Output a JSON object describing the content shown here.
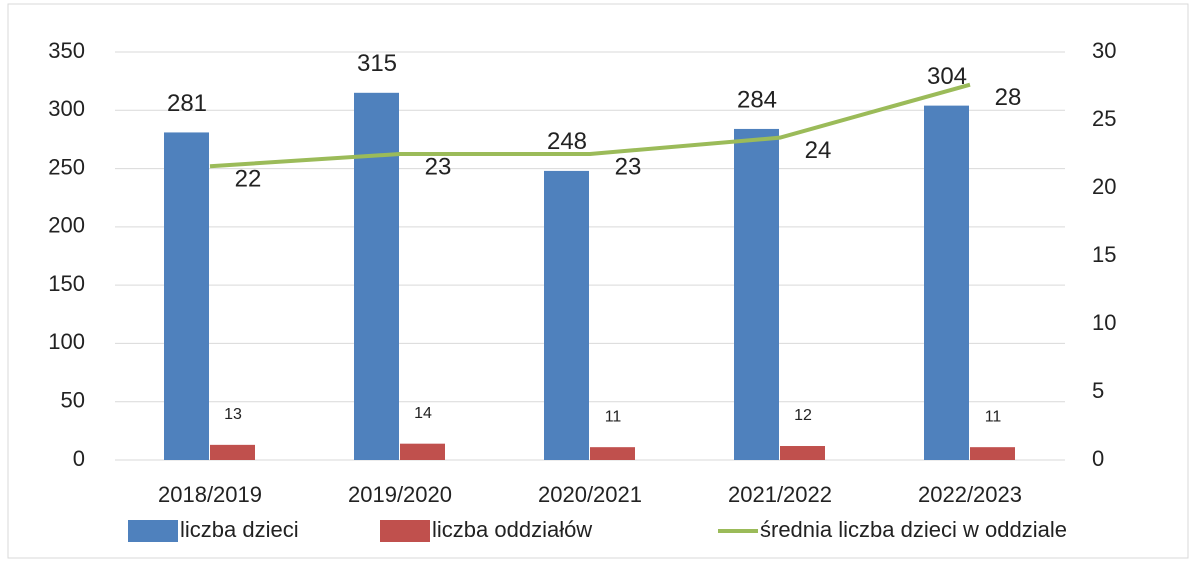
{
  "chart_data": {
    "type": "bar",
    "categories": [
      "2018/2019",
      "2019/2020",
      "2020/2021",
      "2021/2022",
      "2022/2023"
    ],
    "series": [
      {
        "name": "liczba dzieci",
        "color": "#4f81bd",
        "values": [
          281,
          315,
          248,
          284,
          304
        ]
      },
      {
        "name": "liczba oddziałów",
        "color": "#c0504d",
        "values": [
          13,
          14,
          11,
          12,
          11
        ]
      },
      {
        "name": "średnia liczba dzieci w oddziale",
        "color": "#9bbb59",
        "type": "line",
        "axis": "y2",
        "values": [
          21.6,
          22.5,
          22.5,
          23.7,
          27.6
        ],
        "value_labels": [
          "22",
          "23",
          "23",
          "24",
          "28"
        ]
      }
    ],
    "ylim": [
      0,
      350
    ],
    "yticks": [
      0,
      50,
      100,
      150,
      200,
      250,
      300,
      350
    ],
    "y2lim": [
      0,
      30
    ],
    "y2ticks": [
      0,
      5,
      10,
      15,
      20,
      25,
      30
    ],
    "grid": true,
    "legend": "bottom"
  }
}
